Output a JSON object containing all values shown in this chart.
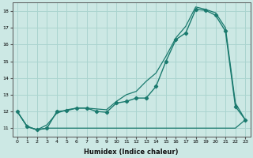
{
  "xlabel": "Humidex (Indice chaleur)",
  "bg_color": "#cce8e4",
  "grid_color": "#aad4cf",
  "line_color": "#1a7a6e",
  "flat_line_x": [
    0,
    1,
    2,
    3,
    4,
    5,
    6,
    7,
    8,
    9,
    10,
    11,
    12,
    13,
    14,
    15,
    16,
    17,
    18,
    19,
    20,
    21,
    22,
    23
  ],
  "flat_line_y": [
    12.0,
    11.1,
    10.9,
    11.0,
    11.0,
    11.0,
    11.0,
    11.0,
    11.0,
    11.0,
    11.0,
    11.0,
    11.0,
    11.0,
    11.0,
    11.0,
    11.0,
    11.0,
    11.0,
    11.0,
    11.0,
    11.0,
    11.0,
    11.5
  ],
  "diag_line_x": [
    0,
    1,
    2,
    3,
    4,
    5,
    6,
    7,
    8,
    9,
    10,
    11,
    12,
    13,
    14,
    15,
    16,
    17,
    18,
    19,
    20,
    21,
    22,
    23
  ],
  "diag_line_y": [
    12.0,
    11.1,
    10.9,
    11.2,
    11.9,
    12.1,
    12.2,
    12.2,
    12.15,
    12.1,
    12.6,
    13.0,
    13.2,
    13.8,
    14.3,
    15.3,
    16.4,
    17.1,
    18.25,
    18.1,
    17.9,
    17.0,
    12.5,
    11.5
  ],
  "curve_line_x": [
    0,
    1,
    2,
    3,
    4,
    5,
    6,
    7,
    8,
    9,
    10,
    11,
    12,
    13,
    14,
    15,
    16,
    17,
    18,
    19,
    20,
    21,
    22,
    23
  ],
  "curve_line_y": [
    12.0,
    11.1,
    10.9,
    11.0,
    12.0,
    12.05,
    12.2,
    12.2,
    12.0,
    11.95,
    12.5,
    12.6,
    12.8,
    12.8,
    13.5,
    15.0,
    16.3,
    16.7,
    18.1,
    18.05,
    17.75,
    16.8,
    12.3,
    11.5
  ],
  "xlim": [
    -0.5,
    23.5
  ],
  "ylim": [
    10.5,
    18.5
  ],
  "yticks": [
    11,
    12,
    13,
    14,
    15,
    16,
    17,
    18
  ],
  "xticks": [
    0,
    1,
    2,
    3,
    4,
    5,
    6,
    7,
    8,
    9,
    10,
    11,
    12,
    13,
    14,
    15,
    16,
    17,
    18,
    19,
    20,
    21,
    22,
    23
  ]
}
